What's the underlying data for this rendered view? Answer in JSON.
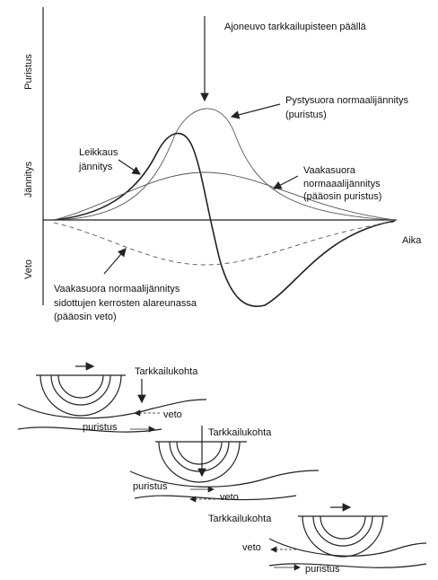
{
  "title": "Ajoneuvo tarkkailupisteen päällä",
  "axis_labels": {
    "top": "Puristus",
    "middle": "Jännitys",
    "bottom": "Veto"
  },
  "x_axis_label": "Aika",
  "annotations": [
    {
      "lines": [
        "Pystysuora normaalijännitys",
        "(puristus)"
      ]
    },
    {
      "lines": [
        "Leikkaus",
        "jännitys"
      ]
    },
    {
      "lines": [
        "Vaakasuora",
        "normaaalijännitys",
        "(pääosin puristus)"
      ]
    },
    {
      "lines": [
        "Vaakasuora normaalijännitys",
        "sidottujen kerrosten alareunassa",
        "(pääosin veto)"
      ]
    }
  ],
  "wheels": [
    {
      "label": "Tarkkailukohta",
      "tension": "veto",
      "compression": "puristus"
    },
    {
      "label": "Tarkkailukohta",
      "tension": "veto",
      "compression": "puristus"
    },
    {
      "label": "Tarkkailukohta",
      "tension": "veto",
      "compression": "puristus"
    }
  ]
}
